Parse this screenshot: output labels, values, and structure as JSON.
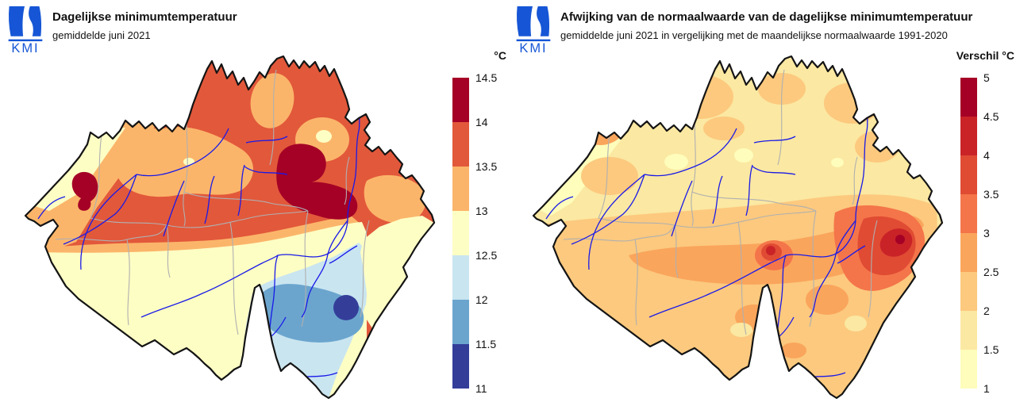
{
  "brand": {
    "logo_text": "KMI",
    "color": "#1656D6"
  },
  "panels": [
    {
      "title": "Dagelijkse minimumtemperatuur",
      "subtitle": "gemiddelde juni 2021",
      "legend": {
        "title": "°C",
        "ticks": [
          "14.5",
          "14",
          "13.5",
          "13",
          "12.5",
          "12",
          "11.5",
          "11"
        ],
        "colors": [
          "#A50026",
          "#E2583B",
          "#FBB56A",
          "#FDFEC4",
          "#C9E5F0",
          "#6BA5CE",
          "#343E99"
        ]
      }
    },
    {
      "title": "Afwijking van de normaalwaarde van de dagelijkse minimumtemperatuur",
      "subtitle": "gemiddelde juni 2021 in vergelijking met de maandelijkse normaalwaarde 1991-2020",
      "legend": {
        "title": "Verschil °C",
        "ticks": [
          "5",
          "4.5",
          "4",
          "3.5",
          "3",
          "2.5",
          "2",
          "1.5",
          "1"
        ],
        "colors": [
          "#A50026",
          "#C92328",
          "#E04B33",
          "#F4754A",
          "#FAA55C",
          "#FCC97E",
          "#FBE8A2",
          "#FEFDBB"
        ]
      }
    }
  ],
  "chart_data": [
    {
      "type": "heatmap",
      "subtype": "filled-contour-map",
      "region": "Belgium",
      "title": "Dagelijkse minimumtemperatuur",
      "subtitle": "gemiddelde juni 2021",
      "unit": "°C",
      "legend_title": "°C",
      "scale_breaks": [
        11,
        11.5,
        12,
        12.5,
        13,
        13.5,
        14,
        14.5
      ],
      "bands": [
        {
          "range": "11-11.5",
          "color": "#343E99"
        },
        {
          "range": "11.5-12",
          "color": "#6BA5CE"
        },
        {
          "range": "12-12.5",
          "color": "#C9E5F0"
        },
        {
          "range": "12.5-13",
          "color": "#FDFEC4"
        },
        {
          "range": "13-13.5",
          "color": "#FBB56A"
        },
        {
          "range": "13.5-14",
          "color": "#E2583B"
        },
        {
          "range": "14-14.5",
          "color": "#A50026"
        }
      ],
      "features": [
        {
          "area": "coast (northwest)",
          "value": "12.5-13"
        },
        {
          "area": "western Flanders",
          "value": "13-13.5"
        },
        {
          "area": "central and northern Belgium",
          "value": "13.5-14"
        },
        {
          "area": "small spot near Kortrijk (west)",
          "value": "14-14.5"
        },
        {
          "area": "Kempen patches (north)",
          "value": "13-13.5"
        },
        {
          "area": "Hasselt-Liege region (east)",
          "value": "14-14.5"
        },
        {
          "area": "Sambre-Meuse transition band",
          "value": "13-13.5"
        },
        {
          "area": "southern Hainaut / Famenne",
          "value": "12.5-13"
        },
        {
          "area": "Ardennes",
          "value": "11.5-12.5"
        },
        {
          "area": "high Ardennes spot (southeast)",
          "value": "11-11.5"
        },
        {
          "area": "far southeast strip",
          "value": "12.5-13"
        }
      ]
    },
    {
      "type": "heatmap",
      "subtype": "filled-contour-map",
      "region": "Belgium",
      "title": "Afwijking van de normaalwaarde van de dagelijkse minimumtemperatuur",
      "subtitle": "gemiddelde juni 2021 in vergelijking met de maandelijkse normaalwaarde 1991-2020",
      "unit": "°C",
      "legend_title": "Verschil °C",
      "scale_breaks": [
        1,
        1.5,
        2,
        2.5,
        3,
        3.5,
        4,
        4.5,
        5
      ],
      "bands": [
        {
          "range": "1-1.5",
          "color": "#FEFDBB"
        },
        {
          "range": "1.5-2",
          "color": "#FBE8A2"
        },
        {
          "range": "2-2.5",
          "color": "#FCC97E"
        },
        {
          "range": "2.5-3",
          "color": "#FAA55C"
        },
        {
          "range": "3-3.5",
          "color": "#F4754A"
        },
        {
          "range": "3.5-4",
          "color": "#E04B33"
        },
        {
          "range": "4-4.5",
          "color": "#C92328"
        },
        {
          "range": "4.5-5",
          "color": "#A50026"
        }
      ],
      "features": [
        {
          "area": "coast (northwest)",
          "value": "1-1.5"
        },
        {
          "area": "Flanders (north and west)",
          "value": "1.5-2"
        },
        {
          "area": "central Belgium and far south",
          "value": "2-2.5"
        },
        {
          "area": "Sambre-Meuse valley band",
          "value": "2.5-3"
        },
        {
          "area": "spot near Huy (center)",
          "value": "4-4.5"
        },
        {
          "area": "eastern Belgium (Liege region)",
          "value": "3-4"
        },
        {
          "area": "eastern cantons hotspot",
          "value": "4.5-5"
        }
      ]
    }
  ]
}
